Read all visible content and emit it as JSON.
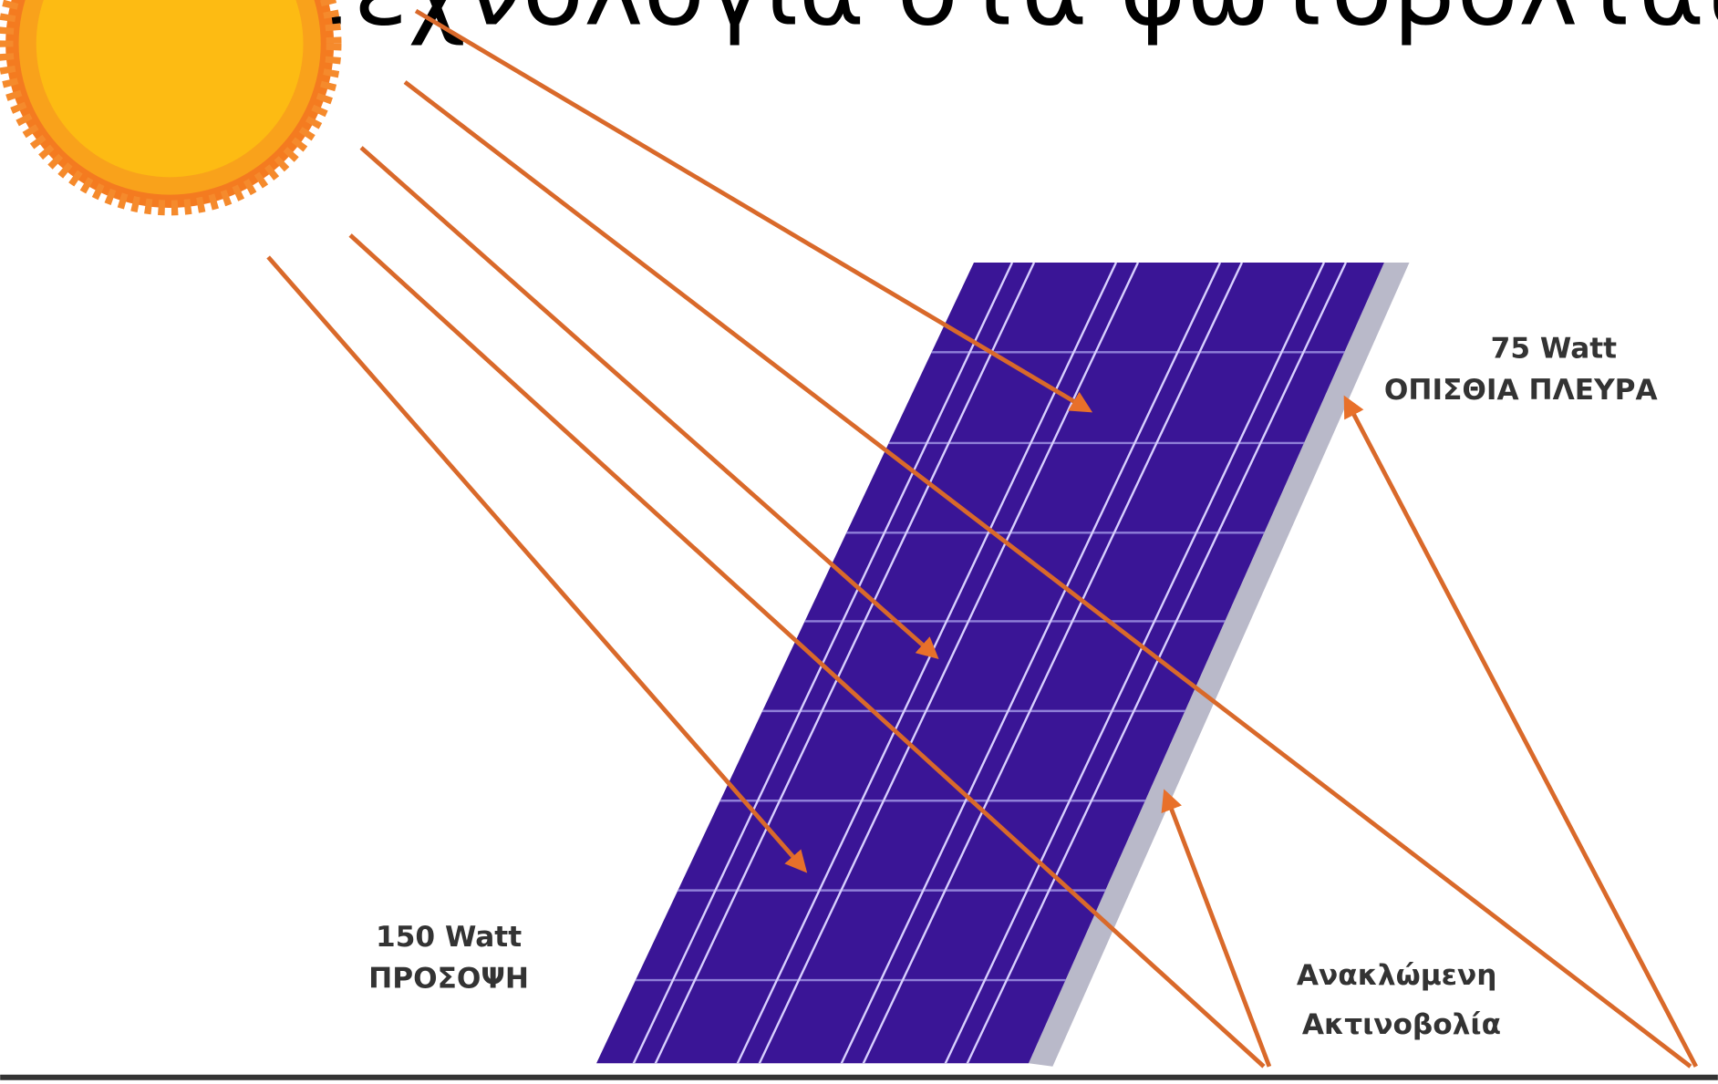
{
  "header": {
    "title": "με τεχνολογία στα φωτοβολταϊκά"
  },
  "labels": {
    "back_power": "75 Watt",
    "back_side": "ΟΠΙΣΘΙΑ ΠΛΕΥΡΑ",
    "front_power": "150 Watt",
    "front_side": "ΠΡΟΣΟΨΗ",
    "reflected_1": "Ανακλώμενη",
    "reflected_2": "Ακτινοβολία"
  }
}
